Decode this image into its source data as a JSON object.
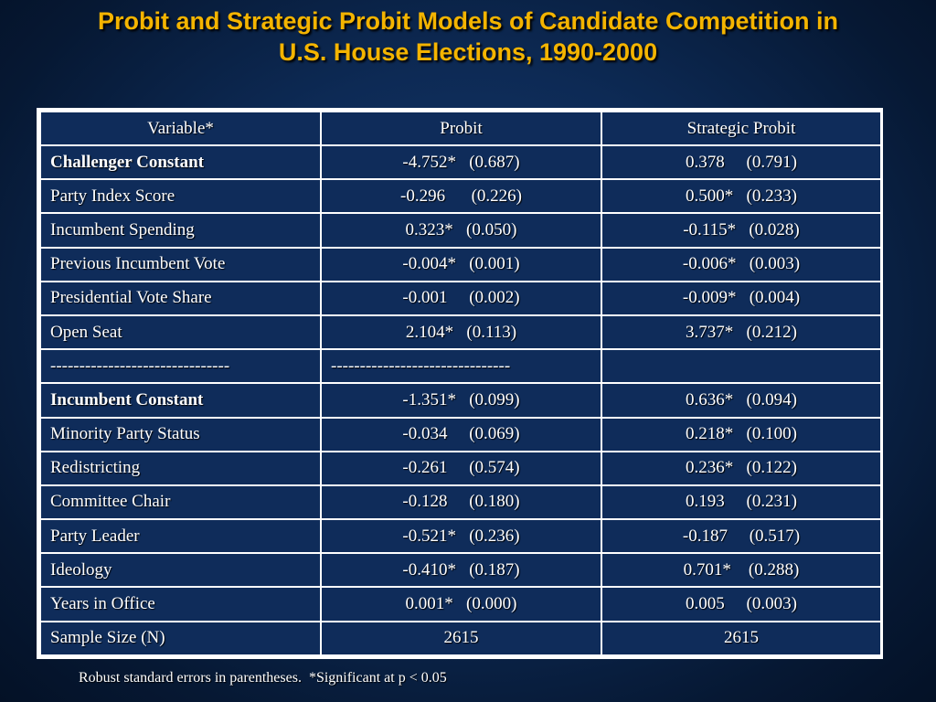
{
  "title": {
    "line1": "Probit and Strategic Probit Models of Candidate Competition in",
    "line2": "U.S. House Elections, 1990-2000"
  },
  "table": {
    "headers": [
      "Variable*",
      "Probit",
      "Strategic Probit"
    ],
    "rows": [
      {
        "variable": "Challenger Constant",
        "probit": "-4.752*   (0.687)",
        "strategic": "0.378     (0.791)",
        "bold": true
      },
      {
        "variable": "Party Index Score",
        "probit": "-0.296      (0.226)",
        "strategic": "0.500*   (0.233)",
        "bold": false
      },
      {
        "variable": "Incumbent Spending",
        "probit": "0.323*   (0.050)",
        "strategic": "-0.115*   (0.028)",
        "bold": false
      },
      {
        "variable": "Previous Incumbent Vote",
        "probit": "-0.004*   (0.001)",
        "strategic": "-0.006*   (0.003)",
        "bold": false
      },
      {
        "variable": "Presidential Vote Share",
        "probit": "-0.001     (0.002)",
        "strategic": "-0.009*   (0.004)",
        "bold": false
      },
      {
        "variable": "Open Seat",
        "probit": "2.104*   (0.113)",
        "strategic": "3.737*   (0.212)",
        "bold": false
      },
      {
        "variable": "-------------------------------",
        "probit": "-------------------------------",
        "strategic": "",
        "bold": false,
        "divider": true
      },
      {
        "variable": "Incumbent Constant",
        "probit": "-1.351*   (0.099)",
        "strategic": "0.636*   (0.094)",
        "bold": true
      },
      {
        "variable": "Minority Party Status",
        "probit": "-0.034     (0.069)",
        "strategic": "0.218*   (0.100)",
        "bold": false
      },
      {
        "variable": "Redistricting",
        "probit": "-0.261     (0.574)",
        "strategic": "0.236*   (0.122)",
        "bold": false
      },
      {
        "variable": "Committee Chair",
        "probit": "-0.128     (0.180)",
        "strategic": "0.193     (0.231)",
        "bold": false
      },
      {
        "variable": "Party Leader",
        "probit": "-0.521*   (0.236)",
        "strategic": "-0.187     (0.517)",
        "bold": false
      },
      {
        "variable": "Ideology",
        "probit": "-0.410*   (0.187)",
        "strategic": "0.701*    (0.288)",
        "bold": false
      },
      {
        "variable": "Years in Office",
        "probit": "0.001*   (0.000)",
        "strategic": "0.005     (0.003)",
        "bold": false
      },
      {
        "variable": "Sample Size (N)",
        "probit": "2615",
        "strategic": "2615",
        "bold": false
      }
    ]
  },
  "footnote": "Robust standard errors in parentheses.  *Significant at p < 0.05",
  "colors": {
    "title": "#f4b400",
    "background": "#0d2a55",
    "text": "#ffffff",
    "grid": "#ffffff"
  }
}
